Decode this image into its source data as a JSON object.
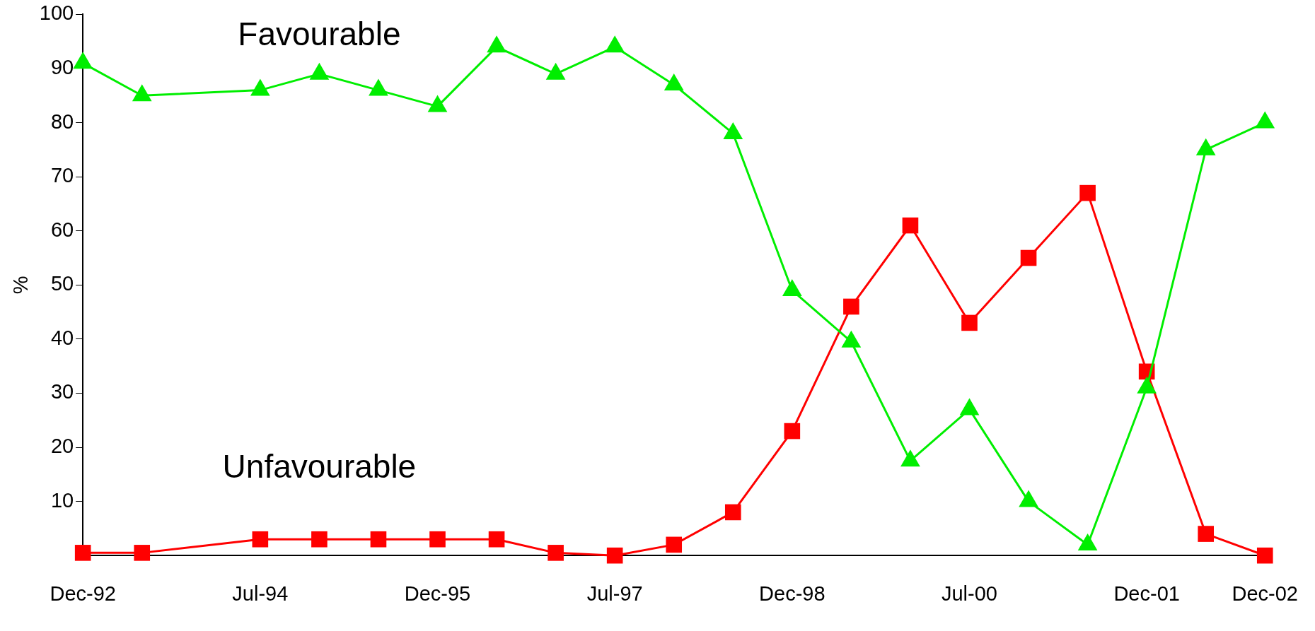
{
  "chart_data": {
    "type": "line",
    "ylabel": "%",
    "categories": [
      "Dec-92",
      null,
      null,
      "Jul-94",
      null,
      null,
      "Dec-95",
      null,
      null,
      "Jul-97",
      null,
      null,
      "Dec-98",
      null,
      null,
      "Jul-00",
      null,
      null,
      "Dec-01",
      null,
      "Dec-02"
    ],
    "series": [
      {
        "name": "Favourable",
        "color": "#00ee00",
        "marker": "triangle",
        "values": [
          91,
          85,
          null,
          86,
          89,
          86,
          83,
          94,
          89,
          94,
          87,
          78,
          49,
          39.5,
          17.5,
          27,
          10,
          2,
          31,
          75,
          80
        ]
      },
      {
        "name": "Unfavourable",
        "color": "#ff0000",
        "marker": "square",
        "values": [
          0.5,
          0.5,
          null,
          3,
          3,
          3,
          3,
          3,
          0.5,
          0,
          2,
          8,
          23,
          46,
          61,
          43,
          55,
          67,
          34,
          4,
          0
        ]
      }
    ],
    "ylim": [
      0,
      100
    ],
    "yticks": [
      10,
      20,
      30,
      40,
      50,
      60,
      70,
      80,
      90,
      100
    ],
    "grid": false,
    "legend": false,
    "line_style": "solid"
  }
}
